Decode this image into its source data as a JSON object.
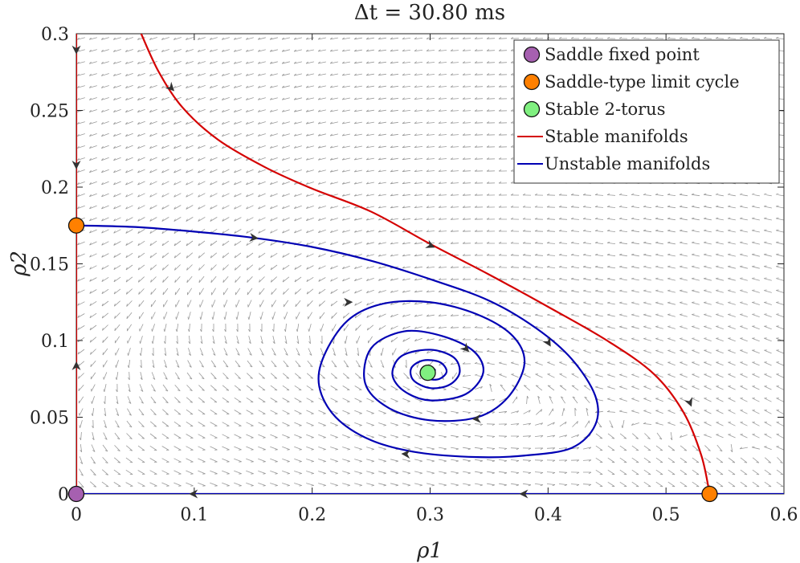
{
  "chart_data": {
    "type": "line",
    "title": "Δt = 30.80 ms",
    "xlabel": "ρ1",
    "ylabel": "ρ2",
    "xlim": [
      0,
      0.6
    ],
    "ylim": [
      0,
      0.3
    ],
    "x_ticks": [
      "0",
      "0.1",
      "0.2",
      "0.3",
      "0.4",
      "0.5",
      "0.6"
    ],
    "y_ticks": [
      "0",
      "0.05",
      "0.1",
      "0.15",
      "0.2",
      "0.25",
      "0.3"
    ],
    "grid": false,
    "legend_position": "top-right",
    "colors": {
      "stable": "#d40000",
      "unstable": "#0000b4",
      "saddle_point": "#a660b0",
      "limit_cycle": "#ff8000",
      "torus": "#80f080",
      "field": "#9a9a9a"
    },
    "legend": [
      {
        "label": "Saddle fixed point",
        "kind": "marker",
        "color_key": "saddle_point"
      },
      {
        "label": "Saddle-type limit cycle",
        "kind": "marker",
        "color_key": "limit_cycle"
      },
      {
        "label": "Stable 2-torus",
        "kind": "marker",
        "color_key": "torus"
      },
      {
        "label": "Stable manifolds",
        "kind": "line",
        "color_key": "stable"
      },
      {
        "label": "Unstable manifolds",
        "kind": "line",
        "color_key": "unstable"
      }
    ],
    "points": [
      {
        "name": "Saddle fixed point",
        "x": 0.0,
        "y": 0.0,
        "color_key": "saddle_point"
      },
      {
        "name": "Saddle-type limit cycle",
        "x": 0.0,
        "y": 0.175,
        "color_key": "limit_cycle"
      },
      {
        "name": "Saddle-type limit cycle",
        "x": 0.537,
        "y": 0.0,
        "color_key": "limit_cycle"
      },
      {
        "name": "Stable 2-torus",
        "x": 0.298,
        "y": 0.079,
        "color_key": "torus"
      }
    ],
    "curves": [
      {
        "name": "Stable manifolds",
        "color_key": "stable",
        "points": [
          [
            0,
            0.3
          ],
          [
            0,
            0.25
          ],
          [
            0,
            0.2
          ],
          [
            0,
            0.175
          ],
          [
            0,
            0.1
          ],
          [
            0,
            0
          ]
        ]
      },
      {
        "name": "Stable manifolds",
        "color_key": "stable",
        "points": [
          [
            0.055,
            0.3
          ],
          [
            0.07,
            0.275
          ],
          [
            0.09,
            0.252
          ],
          [
            0.12,
            0.231
          ],
          [
            0.16,
            0.213
          ],
          [
            0.2,
            0.199
          ],
          [
            0.25,
            0.184
          ],
          [
            0.3,
            0.163
          ],
          [
            0.35,
            0.143
          ],
          [
            0.4,
            0.122
          ],
          [
            0.45,
            0.1
          ],
          [
            0.49,
            0.078
          ],
          [
            0.515,
            0.053
          ],
          [
            0.53,
            0.025
          ],
          [
            0.537,
            0
          ]
        ]
      },
      {
        "name": "Unstable manifolds",
        "color_key": "unstable",
        "points": [
          [
            0,
            0
          ],
          [
            0.1,
            0
          ],
          [
            0.2,
            0
          ],
          [
            0.3,
            0
          ],
          [
            0.4,
            0
          ],
          [
            0.5,
            0
          ],
          [
            0.537,
            0
          ],
          [
            0.6,
            0
          ]
        ]
      },
      {
        "name": "Unstable manifolds",
        "color_key": "unstable",
        "points": [
          [
            0,
            0.175
          ],
          [
            0.05,
            0.174
          ],
          [
            0.1,
            0.171
          ],
          [
            0.15,
            0.167
          ],
          [
            0.2,
            0.161
          ],
          [
            0.25,
            0.152
          ],
          [
            0.3,
            0.14
          ],
          [
            0.35,
            0.126
          ],
          [
            0.39,
            0.108
          ],
          [
            0.42,
            0.088
          ],
          [
            0.44,
            0.064
          ],
          [
            0.44,
            0.045
          ],
          [
            0.42,
            0.03
          ],
          [
            0.38,
            0.025
          ],
          [
            0.34,
            0.024
          ],
          [
            0.29,
            0.027
          ],
          [
            0.25,
            0.035
          ],
          [
            0.22,
            0.05
          ],
          [
            0.206,
            0.07
          ],
          [
            0.21,
            0.09
          ],
          [
            0.23,
            0.113
          ],
          [
            0.26,
            0.124
          ],
          [
            0.3,
            0.125
          ],
          [
            0.34,
            0.117
          ],
          [
            0.37,
            0.103
          ],
          [
            0.38,
            0.085
          ],
          [
            0.366,
            0.063
          ],
          [
            0.34,
            0.05
          ],
          [
            0.3,
            0.048
          ],
          [
            0.265,
            0.056
          ],
          [
            0.245,
            0.072
          ],
          [
            0.25,
            0.095
          ],
          [
            0.278,
            0.106
          ],
          [
            0.31,
            0.103
          ],
          [
            0.337,
            0.093
          ],
          [
            0.345,
            0.079
          ],
          [
            0.33,
            0.065
          ],
          [
            0.3,
            0.061
          ],
          [
            0.278,
            0.067
          ],
          [
            0.268,
            0.078
          ],
          [
            0.276,
            0.09
          ],
          [
            0.3,
            0.094
          ],
          [
            0.32,
            0.089
          ],
          [
            0.325,
            0.079
          ],
          [
            0.316,
            0.071
          ],
          [
            0.3,
            0.069
          ],
          [
            0.286,
            0.074
          ],
          [
            0.284,
            0.082
          ],
          [
            0.294,
            0.087
          ],
          [
            0.308,
            0.086
          ],
          [
            0.314,
            0.08
          ],
          [
            0.308,
            0.075
          ],
          [
            0.298,
            0.075
          ],
          [
            0.292,
            0.079
          ],
          [
            0.298,
            0.082
          ],
          [
            0.304,
            0.081
          ],
          [
            0.302,
            0.079
          ]
        ]
      }
    ],
    "flow_arrows": [
      {
        "color_key": "stable",
        "x": 0.0,
        "y": 0.29,
        "dx": 0,
        "dy": -1
      },
      {
        "color_key": "stable",
        "x": 0.0,
        "y": 0.215,
        "dx": 0,
        "dy": -1
      },
      {
        "color_key": "stable",
        "x": 0.0,
        "y": 0.083,
        "dx": 0,
        "dy": 1
      },
      {
        "color_key": "stable",
        "x": 0.08,
        "y": 0.265,
        "dx": 0.7,
        "dy": -0.7
      },
      {
        "color_key": "stable",
        "x": 0.3,
        "y": 0.162,
        "dx": 1,
        "dy": -0.45
      },
      {
        "color_key": "stable",
        "x": 0.52,
        "y": 0.06,
        "dx": 0.4,
        "dy": -1
      },
      {
        "color_key": "unstable",
        "x": 0.1,
        "y": 0.0,
        "dx": -1,
        "dy": 0
      },
      {
        "color_key": "unstable",
        "x": 0.38,
        "y": 0.0,
        "dx": -1,
        "dy": 0
      },
      {
        "color_key": "unstable",
        "x": 0.15,
        "y": 0.167,
        "dx": 1,
        "dy": -0.12
      },
      {
        "color_key": "unstable",
        "x": 0.4,
        "y": 0.099,
        "dx": 0.6,
        "dy": -1
      },
      {
        "color_key": "unstable",
        "x": 0.28,
        "y": 0.026,
        "dx": -1,
        "dy": 0.05
      },
      {
        "color_key": "unstable",
        "x": 0.23,
        "y": 0.125,
        "dx": 1,
        "dy": 0.03
      },
      {
        "color_key": "unstable",
        "x": 0.34,
        "y": 0.049,
        "dx": -1,
        "dy": -0.05
      },
      {
        "color_key": "unstable",
        "x": 0.33,
        "y": 0.095,
        "dx": 0.6,
        "dy": -0.6
      }
    ]
  }
}
